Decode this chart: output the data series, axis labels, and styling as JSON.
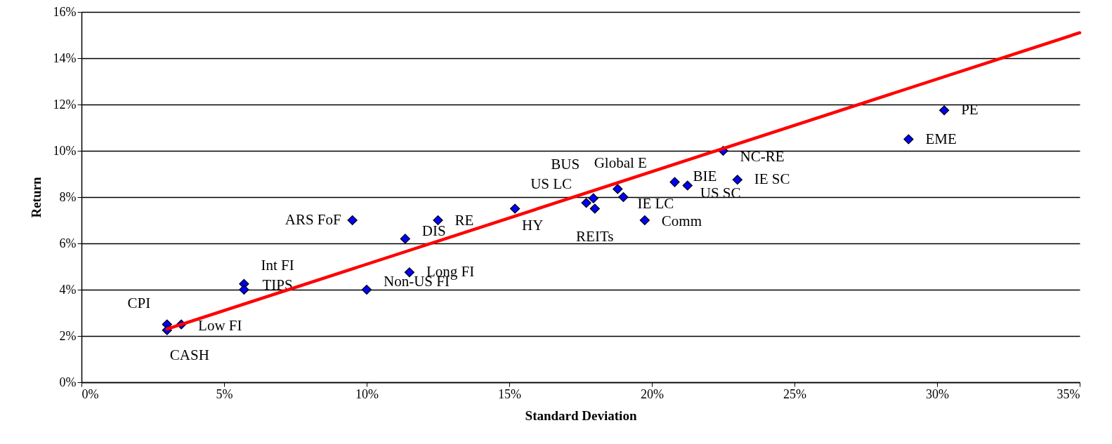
{
  "chart_data": {
    "type": "scatter",
    "xlabel": "Standard Deviation",
    "ylabel": "Return",
    "xlim": [
      0,
      35
    ],
    "ylim": [
      0,
      16
    ],
    "xticks": [
      {
        "value": 0,
        "label": "0%"
      },
      {
        "value": 5,
        "label": "5%"
      },
      {
        "value": 10,
        "label": "10%"
      },
      {
        "value": 15,
        "label": "15%"
      },
      {
        "value": 20,
        "label": "20%"
      },
      {
        "value": 25,
        "label": "25%"
      },
      {
        "value": 30,
        "label": "30%"
      },
      {
        "value": 35,
        "label": "35%"
      }
    ],
    "yticks": [
      {
        "value": 0,
        "label": "0%"
      },
      {
        "value": 2,
        "label": "2%"
      },
      {
        "value": 4,
        "label": "4%"
      },
      {
        "value": 6,
        "label": "6%"
      },
      {
        "value": 8,
        "label": "8%"
      },
      {
        "value": 10,
        "label": "10%"
      },
      {
        "value": 12,
        "label": "12%"
      },
      {
        "value": 14,
        "label": "14%"
      },
      {
        "value": 16,
        "label": "16%"
      }
    ],
    "grid": "y",
    "series": [
      {
        "marker": "diamond",
        "color": "#0000ff",
        "x": [
          3.0,
          3.0,
          3.5,
          5.7,
          5.7,
          9.5,
          10.0,
          11.35,
          11.5,
          12.5,
          15.2,
          17.7,
          17.95,
          18.0,
          18.8,
          19.0,
          19.75,
          20.8,
          21.25,
          22.5,
          23.0,
          29.0,
          30.25
        ],
        "values": [
          2.5,
          2.25,
          2.5,
          4.25,
          4.0,
          7.0,
          4.0,
          6.2,
          4.75,
          7.0,
          7.5,
          7.75,
          7.95,
          7.5,
          8.35,
          8.0,
          7.0,
          8.65,
          8.5,
          10.0,
          8.75,
          10.5,
          11.75
        ],
        "value_labels": [
          "CPI",
          "CASH",
          "Low FI",
          "Int FI",
          "TIPS",
          "ARS FoF",
          "Non-US FI",
          "DIS",
          "Long FI",
          "RE",
          "HY",
          "US LC",
          "BUS",
          "REITs",
          "Global E",
          "IE LC",
          "Comm",
          "BIE",
          "US SC",
          "NC-RE",
          "IE SC",
          "EME",
          "PE"
        ]
      },
      {
        "color": "#ff0000",
        "type": "line",
        "x": [
          3.0,
          35.0
        ],
        "values": [
          2.3,
          15.1
        ]
      }
    ]
  }
}
